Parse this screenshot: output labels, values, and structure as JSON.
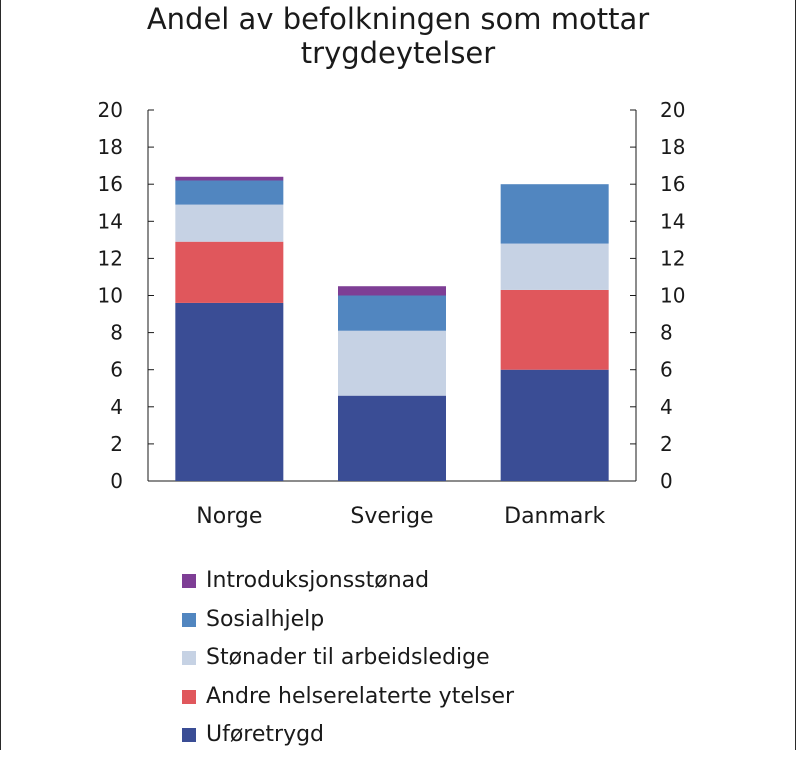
{
  "chart_data": {
    "type": "bar",
    "stacked": true,
    "title": "Andel av befolkningen som mottar trygdeytelser",
    "title_lines": [
      "Andel av befolkningen som mottar",
      "trygdeytelser"
    ],
    "categories": [
      "Norge",
      "Sverige",
      "Danmark"
    ],
    "ylim": [
      0,
      20
    ],
    "y_ticks": [
      "0",
      "2",
      "4",
      "6",
      "8",
      "10",
      "12",
      "14",
      "16",
      "18",
      "20"
    ],
    "xlabel": "",
    "ylabel": "",
    "legend_position": "bottom",
    "series": [
      {
        "name": "Uføretrygd",
        "color": "#3a4d95",
        "values": [
          9.6,
          4.6,
          6.0
        ]
      },
      {
        "name": "Andre helserelaterte ytelser",
        "color": "#e0575c",
        "values": [
          3.3,
          0.0,
          4.3
        ]
      },
      {
        "name": "Stønader til arbeidsledige",
        "color": "#c6d2e4",
        "values": [
          2.0,
          3.5,
          2.5
        ]
      },
      {
        "name": "Sosialhjelp",
        "color": "#5186c0",
        "values": [
          1.3,
          1.9,
          3.2
        ]
      },
      {
        "name": "Introduksjonsstønad",
        "color": "#7e3e95",
        "values": [
          0.2,
          0.5,
          0.0
        ]
      }
    ],
    "legend_order": [
      "Introduksjonsstønad",
      "Sosialhjelp",
      "Stønader til arbeidsledige",
      "Andre helserelaterte ytelser",
      "Uføretrygd"
    ]
  }
}
